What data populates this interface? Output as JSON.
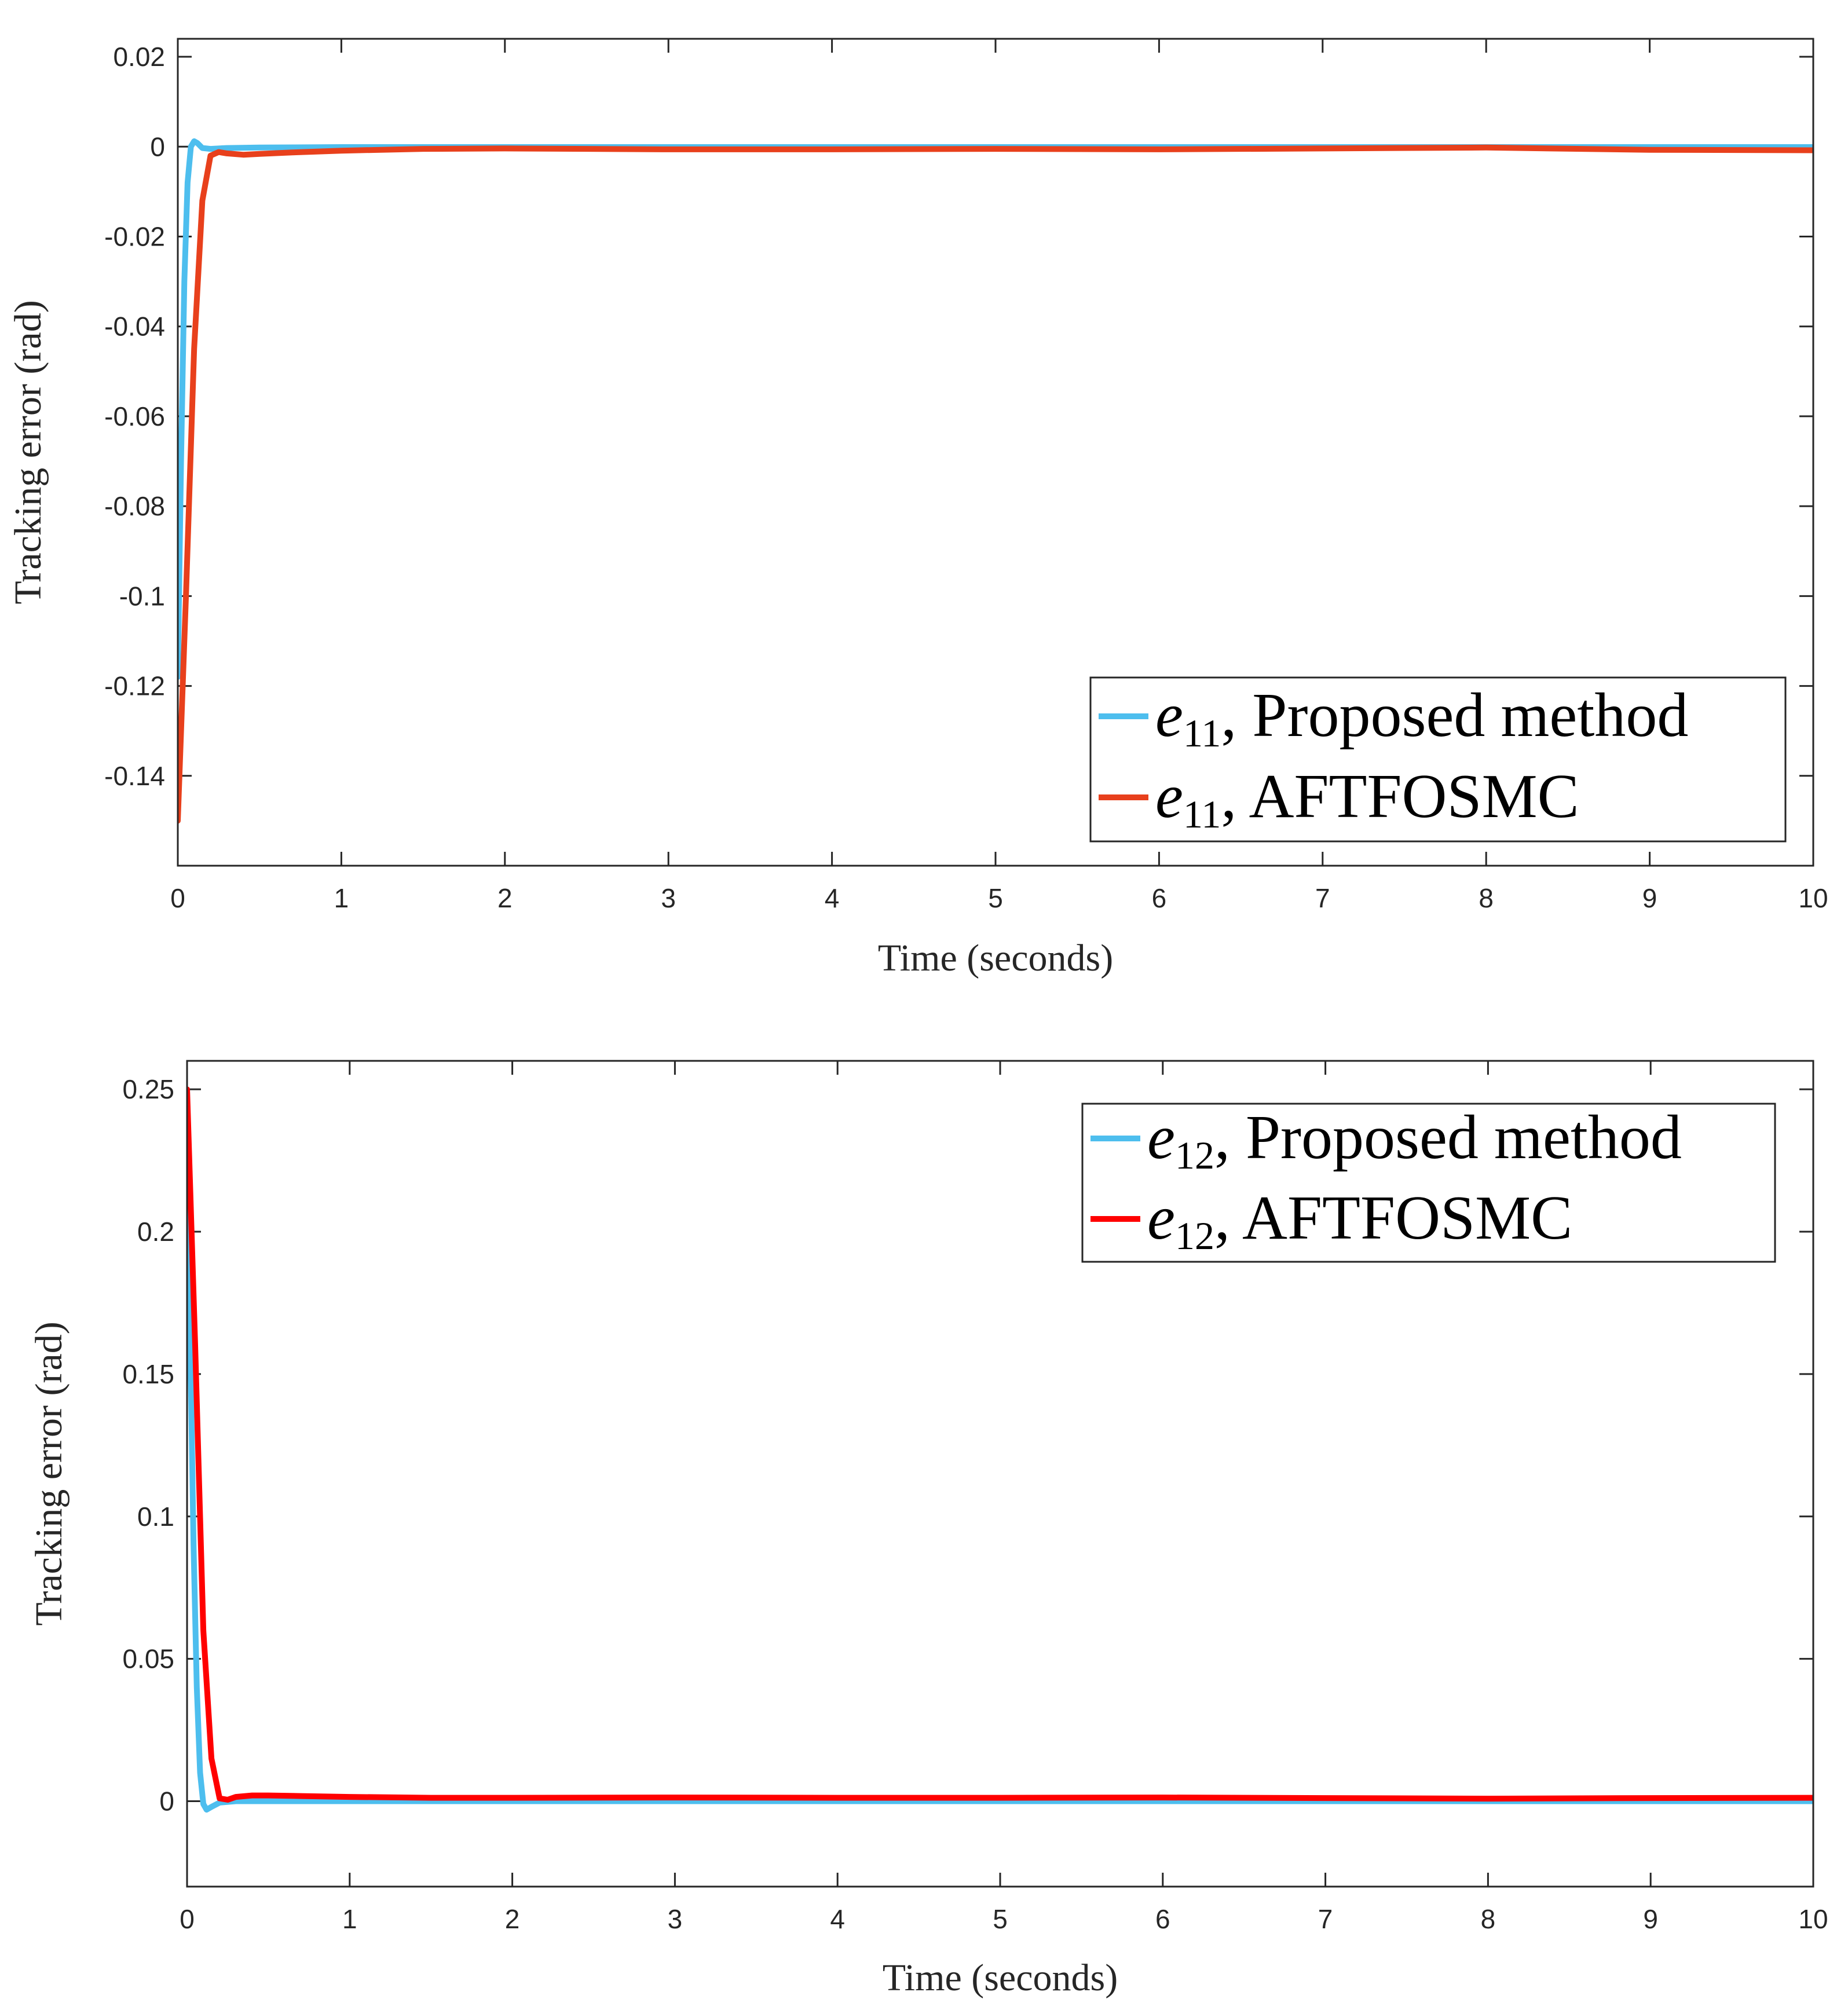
{
  "chart_data": [
    {
      "type": "line",
      "xlabel": "Time (seconds)",
      "ylabel": "Tracking error (rad)",
      "xlim": [
        0,
        10
      ],
      "ylim": [
        -0.16,
        0.024
      ],
      "xticks": [
        0,
        1,
        2,
        3,
        4,
        5,
        6,
        7,
        8,
        9,
        10
      ],
      "xtick_labels": [
        "0",
        "1",
        "2",
        "3",
        "4",
        "5",
        "6",
        "7",
        "8",
        "9",
        "10"
      ],
      "yticks": [
        0.02,
        0,
        -0.02,
        -0.04,
        -0.06,
        -0.08,
        -0.1,
        -0.12,
        -0.14
      ],
      "ytick_labels": [
        "0.02",
        "0",
        "-0.02",
        "-0.04",
        "-0.06",
        "-0.08",
        "-0.1",
        "-0.12",
        "-0.14"
      ],
      "legend_position": "bottom-right",
      "series": [
        {
          "name": "Proposed method",
          "symbol": "e",
          "subscript": "11",
          "color": "#4DBEEE",
          "x": [
            0,
            0.02,
            0.04,
            0.06,
            0.08,
            0.1,
            0.12,
            0.15,
            0.2,
            0.3,
            0.5,
            1,
            2,
            3,
            4,
            5,
            6,
            7,
            8,
            9,
            10
          ],
          "y": [
            -0.118,
            -0.07,
            -0.03,
            -0.008,
            0.0,
            0.0012,
            0.0008,
            -0.0003,
            -0.0005,
            -0.0003,
            -0.0002,
            -0.0001,
            -0.0001,
            -0.0001,
            -0.0001,
            -0.0001,
            -0.0001,
            -0.0001,
            -0.0001,
            -0.0001,
            -0.0001
          ]
        },
        {
          "name": "AFTFOSMC",
          "symbol": "e",
          "subscript": "11",
          "color": "#E8401C",
          "x": [
            0,
            0.05,
            0.1,
            0.15,
            0.2,
            0.25,
            0.3,
            0.4,
            0.5,
            0.7,
            1,
            1.5,
            2,
            3,
            4,
            5,
            6,
            7,
            8,
            9,
            10
          ],
          "y": [
            -0.15,
            -0.1,
            -0.045,
            -0.012,
            -0.002,
            -0.0012,
            -0.0015,
            -0.0018,
            -0.0016,
            -0.0013,
            -0.0009,
            -0.0005,
            -0.0004,
            -0.0006,
            -0.0006,
            -0.0005,
            -0.0006,
            -0.0004,
            -0.0002,
            -0.0007,
            -0.0008
          ]
        }
      ]
    },
    {
      "type": "line",
      "xlabel": "Time (seconds)",
      "ylabel": "Tracking error (rad)",
      "xlim": [
        0,
        10
      ],
      "ylim": [
        -0.03,
        0.26
      ],
      "xticks": [
        0,
        1,
        2,
        3,
        4,
        5,
        6,
        7,
        8,
        9,
        10
      ],
      "xtick_labels": [
        "0",
        "1",
        "2",
        "3",
        "4",
        "5",
        "6",
        "7",
        "8",
        "9",
        "10"
      ],
      "yticks": [
        0.25,
        0.2,
        0.15,
        0.1,
        0.05,
        0
      ],
      "ytick_labels": [
        "0.25",
        "0.2",
        "0.15",
        "0.1",
        "0.05",
        "0"
      ],
      "legend_position": "top-right",
      "series": [
        {
          "name": "Proposed method",
          "symbol": "e",
          "subscript": "12",
          "color": "#4DBEEE",
          "x": [
            0,
            0.02,
            0.04,
            0.06,
            0.08,
            0.1,
            0.12,
            0.15,
            0.2,
            0.3,
            0.5,
            1,
            2,
            3,
            4,
            5,
            6,
            7,
            8,
            9,
            10
          ],
          "y": [
            0.25,
            0.16,
            0.09,
            0.04,
            0.01,
            -0.001,
            -0.003,
            -0.002,
            -0.0005,
            0.0,
            0.0,
            0.0,
            0.0,
            0.0,
            0.0,
            0.0,
            0.0,
            0.0,
            0.0,
            0.0,
            0.0
          ]
        },
        {
          "name": "AFTFOSMC",
          "symbol": "e",
          "subscript": "12",
          "color": "#FF0000",
          "x": [
            0,
            0.05,
            0.1,
            0.15,
            0.2,
            0.25,
            0.3,
            0.4,
            0.5,
            0.7,
            1,
            1.5,
            2,
            3,
            4,
            5,
            6,
            7,
            8,
            9,
            10
          ],
          "y": [
            0.25,
            0.16,
            0.06,
            0.015,
            0.001,
            0.0005,
            0.0015,
            0.002,
            0.002,
            0.0018,
            0.0015,
            0.0012,
            0.0012,
            0.0013,
            0.0012,
            0.0012,
            0.0013,
            0.0011,
            0.0009,
            0.0011,
            0.0012
          ]
        }
      ]
    }
  ]
}
